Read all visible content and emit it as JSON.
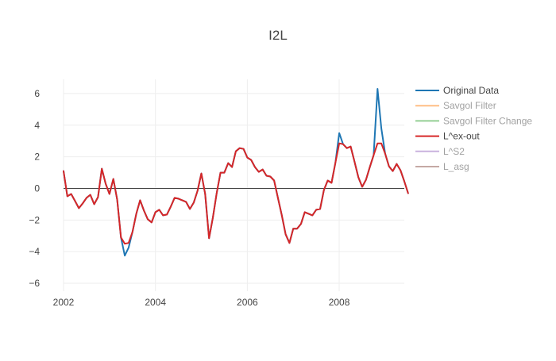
{
  "chart_data": {
    "type": "line",
    "title": "I2L",
    "xlabel": "",
    "ylabel": "",
    "xlim": [
      "2002-01",
      "2009-06"
    ],
    "ylim": [
      -6.5,
      6.9
    ],
    "grid": true,
    "legend_position": "right",
    "x_ticks": [
      {
        "value": "2002-01",
        "label": "2002"
      },
      {
        "value": "2004-01",
        "label": "2004"
      },
      {
        "value": "2006-01",
        "label": "2006"
      },
      {
        "value": "2008-01",
        "label": "2008"
      }
    ],
    "y_ticks": [
      -6,
      -4,
      -2,
      0,
      2,
      4,
      6
    ],
    "zero_line": 0,
    "legend": [
      {
        "name": "Original Data",
        "color": "#1f77b4",
        "visible": true
      },
      {
        "name": "Savgol Filter",
        "color": "#ff7f0e",
        "visible": false
      },
      {
        "name": "Savgol Filter Change",
        "color": "#2ca02c",
        "visible": false
      },
      {
        "name": "L^ex-out",
        "color": "#d62728",
        "visible": true
      },
      {
        "name": "L^S2",
        "color": "#9467bd",
        "visible": false
      },
      {
        "name": "L_asg",
        "color": "#8c564b",
        "visible": false
      }
    ],
    "series": [
      {
        "name": "Original Data",
        "color": "#1f77b4",
        "points": [
          [
            "2002-01",
            1.1
          ],
          [
            "2002-02",
            -0.5
          ],
          [
            "2002-03",
            -0.35
          ],
          [
            "2002-04",
            -0.8
          ],
          [
            "2002-05",
            -1.25
          ],
          [
            "2002-06",
            -0.95
          ],
          [
            "2002-07",
            -0.6
          ],
          [
            "2002-08",
            -0.4
          ],
          [
            "2002-09",
            -1.0
          ],
          [
            "2002-10",
            -0.55
          ],
          [
            "2002-11",
            1.25
          ],
          [
            "2002-12",
            0.3
          ],
          [
            "2003-01",
            -0.35
          ],
          [
            "2003-02",
            0.6
          ],
          [
            "2003-03",
            -0.7
          ],
          [
            "2003-04",
            -3.1
          ],
          [
            "2003-05",
            -4.25
          ],
          [
            "2003-06",
            -3.75
          ],
          [
            "2003-07",
            -2.75
          ],
          [
            "2003-08",
            -1.6
          ],
          [
            "2003-09",
            -0.75
          ],
          [
            "2003-10",
            -1.4
          ],
          [
            "2003-11",
            -1.95
          ],
          [
            "2003-12",
            -2.15
          ],
          [
            "2004-01",
            -1.5
          ],
          [
            "2004-02",
            -1.35
          ],
          [
            "2004-03",
            -1.7
          ],
          [
            "2004-04",
            -1.65
          ],
          [
            "2004-05",
            -1.15
          ],
          [
            "2004-06",
            -0.6
          ],
          [
            "2004-07",
            -0.65
          ],
          [
            "2004-08",
            -0.75
          ],
          [
            "2004-09",
            -0.85
          ],
          [
            "2004-10",
            -1.3
          ],
          [
            "2004-11",
            -0.9
          ],
          [
            "2004-12",
            -0.15
          ],
          [
            "2005-01",
            0.95
          ],
          [
            "2005-02",
            -0.35
          ],
          [
            "2005-03",
            -3.15
          ],
          [
            "2005-04",
            -1.85
          ],
          [
            "2005-05",
            -0.3
          ],
          [
            "2005-06",
            1.0
          ],
          [
            "2005-07",
            1.0
          ],
          [
            "2005-08",
            1.6
          ],
          [
            "2005-09",
            1.35
          ],
          [
            "2005-10",
            2.35
          ],
          [
            "2005-11",
            2.55
          ],
          [
            "2005-12",
            2.5
          ],
          [
            "2006-01",
            1.95
          ],
          [
            "2006-02",
            1.8
          ],
          [
            "2006-03",
            1.35
          ],
          [
            "2006-04",
            1.05
          ],
          [
            "2006-05",
            1.2
          ],
          [
            "2006-06",
            0.8
          ],
          [
            "2006-07",
            0.75
          ],
          [
            "2006-08",
            0.5
          ],
          [
            "2006-09",
            -0.6
          ],
          [
            "2006-10",
            -1.7
          ],
          [
            "2006-11",
            -2.9
          ],
          [
            "2006-12",
            -3.45
          ],
          [
            "2007-01",
            -2.55
          ],
          [
            "2007-02",
            -2.55
          ],
          [
            "2007-03",
            -2.25
          ],
          [
            "2007-04",
            -1.5
          ],
          [
            "2007-05",
            -1.6
          ],
          [
            "2007-06",
            -1.7
          ],
          [
            "2007-07",
            -1.35
          ],
          [
            "2007-08",
            -1.3
          ],
          [
            "2007-09",
            -0.1
          ],
          [
            "2007-10",
            0.5
          ],
          [
            "2007-11",
            0.35
          ],
          [
            "2007-12",
            1.6
          ],
          [
            "2008-01",
            3.5
          ],
          [
            "2008-02",
            2.8
          ],
          [
            "2008-03",
            2.55
          ],
          [
            "2008-04",
            2.65
          ],
          [
            "2008-05",
            1.7
          ],
          [
            "2008-06",
            0.7
          ],
          [
            "2008-07",
            0.1
          ],
          [
            "2008-08",
            0.55
          ],
          [
            "2008-09",
            1.35
          ],
          [
            "2008-10",
            2.1
          ],
          [
            "2008-11",
            6.3
          ],
          [
            "2008-12",
            3.8
          ],
          [
            "2009-01",
            2.2
          ],
          [
            "2009-02",
            1.4
          ],
          [
            "2009-03",
            1.1
          ],
          [
            "2009-04",
            1.55
          ],
          [
            "2009-05",
            1.15
          ],
          [
            "2009-06",
            0.45
          ],
          [
            "2009-07",
            -0.3
          ]
        ]
      },
      {
        "name": "L^ex-out",
        "color": "#d62728",
        "points": [
          [
            "2002-01",
            1.1
          ],
          [
            "2002-02",
            -0.5
          ],
          [
            "2002-03",
            -0.35
          ],
          [
            "2002-04",
            -0.8
          ],
          [
            "2002-05",
            -1.25
          ],
          [
            "2002-06",
            -0.95
          ],
          [
            "2002-07",
            -0.6
          ],
          [
            "2002-08",
            -0.4
          ],
          [
            "2002-09",
            -1.0
          ],
          [
            "2002-10",
            -0.55
          ],
          [
            "2002-11",
            1.25
          ],
          [
            "2002-12",
            0.3
          ],
          [
            "2003-01",
            -0.35
          ],
          [
            "2003-02",
            0.6
          ],
          [
            "2003-03",
            -0.7
          ],
          [
            "2003-04",
            -3.1
          ],
          [
            "2003-05",
            -3.5
          ],
          [
            "2003-06",
            -3.45
          ],
          [
            "2003-07",
            -2.75
          ],
          [
            "2003-08",
            -1.6
          ],
          [
            "2003-09",
            -0.75
          ],
          [
            "2003-10",
            -1.4
          ],
          [
            "2003-11",
            -1.95
          ],
          [
            "2003-12",
            -2.15
          ],
          [
            "2004-01",
            -1.5
          ],
          [
            "2004-02",
            -1.35
          ],
          [
            "2004-03",
            -1.7
          ],
          [
            "2004-04",
            -1.65
          ],
          [
            "2004-05",
            -1.15
          ],
          [
            "2004-06",
            -0.6
          ],
          [
            "2004-07",
            -0.65
          ],
          [
            "2004-08",
            -0.75
          ],
          [
            "2004-09",
            -0.85
          ],
          [
            "2004-10",
            -1.3
          ],
          [
            "2004-11",
            -0.9
          ],
          [
            "2004-12",
            -0.15
          ],
          [
            "2005-01",
            0.95
          ],
          [
            "2005-02",
            -0.35
          ],
          [
            "2005-03",
            -3.15
          ],
          [
            "2005-04",
            -1.85
          ],
          [
            "2005-05",
            -0.3
          ],
          [
            "2005-06",
            1.0
          ],
          [
            "2005-07",
            1.0
          ],
          [
            "2005-08",
            1.6
          ],
          [
            "2005-09",
            1.35
          ],
          [
            "2005-10",
            2.35
          ],
          [
            "2005-11",
            2.55
          ],
          [
            "2005-12",
            2.5
          ],
          [
            "2006-01",
            1.95
          ],
          [
            "2006-02",
            1.8
          ],
          [
            "2006-03",
            1.35
          ],
          [
            "2006-04",
            1.05
          ],
          [
            "2006-05",
            1.2
          ],
          [
            "2006-06",
            0.8
          ],
          [
            "2006-07",
            0.75
          ],
          [
            "2006-08",
            0.5
          ],
          [
            "2006-09",
            -0.6
          ],
          [
            "2006-10",
            -1.7
          ],
          [
            "2006-11",
            -2.9
          ],
          [
            "2006-12",
            -3.45
          ],
          [
            "2007-01",
            -2.55
          ],
          [
            "2007-02",
            -2.55
          ],
          [
            "2007-03",
            -2.25
          ],
          [
            "2007-04",
            -1.5
          ],
          [
            "2007-05",
            -1.6
          ],
          [
            "2007-06",
            -1.7
          ],
          [
            "2007-07",
            -1.35
          ],
          [
            "2007-08",
            -1.3
          ],
          [
            "2007-09",
            -0.1
          ],
          [
            "2007-10",
            0.5
          ],
          [
            "2007-11",
            0.35
          ],
          [
            "2007-12",
            1.6
          ],
          [
            "2008-01",
            2.85
          ],
          [
            "2008-02",
            2.8
          ],
          [
            "2008-03",
            2.55
          ],
          [
            "2008-04",
            2.65
          ],
          [
            "2008-05",
            1.7
          ],
          [
            "2008-06",
            0.7
          ],
          [
            "2008-07",
            0.1
          ],
          [
            "2008-08",
            0.55
          ],
          [
            "2008-09",
            1.35
          ],
          [
            "2008-10",
            2.1
          ],
          [
            "2008-11",
            2.85
          ],
          [
            "2008-12",
            2.85
          ],
          [
            "2009-01",
            2.2
          ],
          [
            "2009-02",
            1.4
          ],
          [
            "2009-03",
            1.1
          ],
          [
            "2009-04",
            1.55
          ],
          [
            "2009-05",
            1.15
          ],
          [
            "2009-06",
            0.45
          ],
          [
            "2009-07",
            -0.3
          ]
        ]
      }
    ]
  }
}
